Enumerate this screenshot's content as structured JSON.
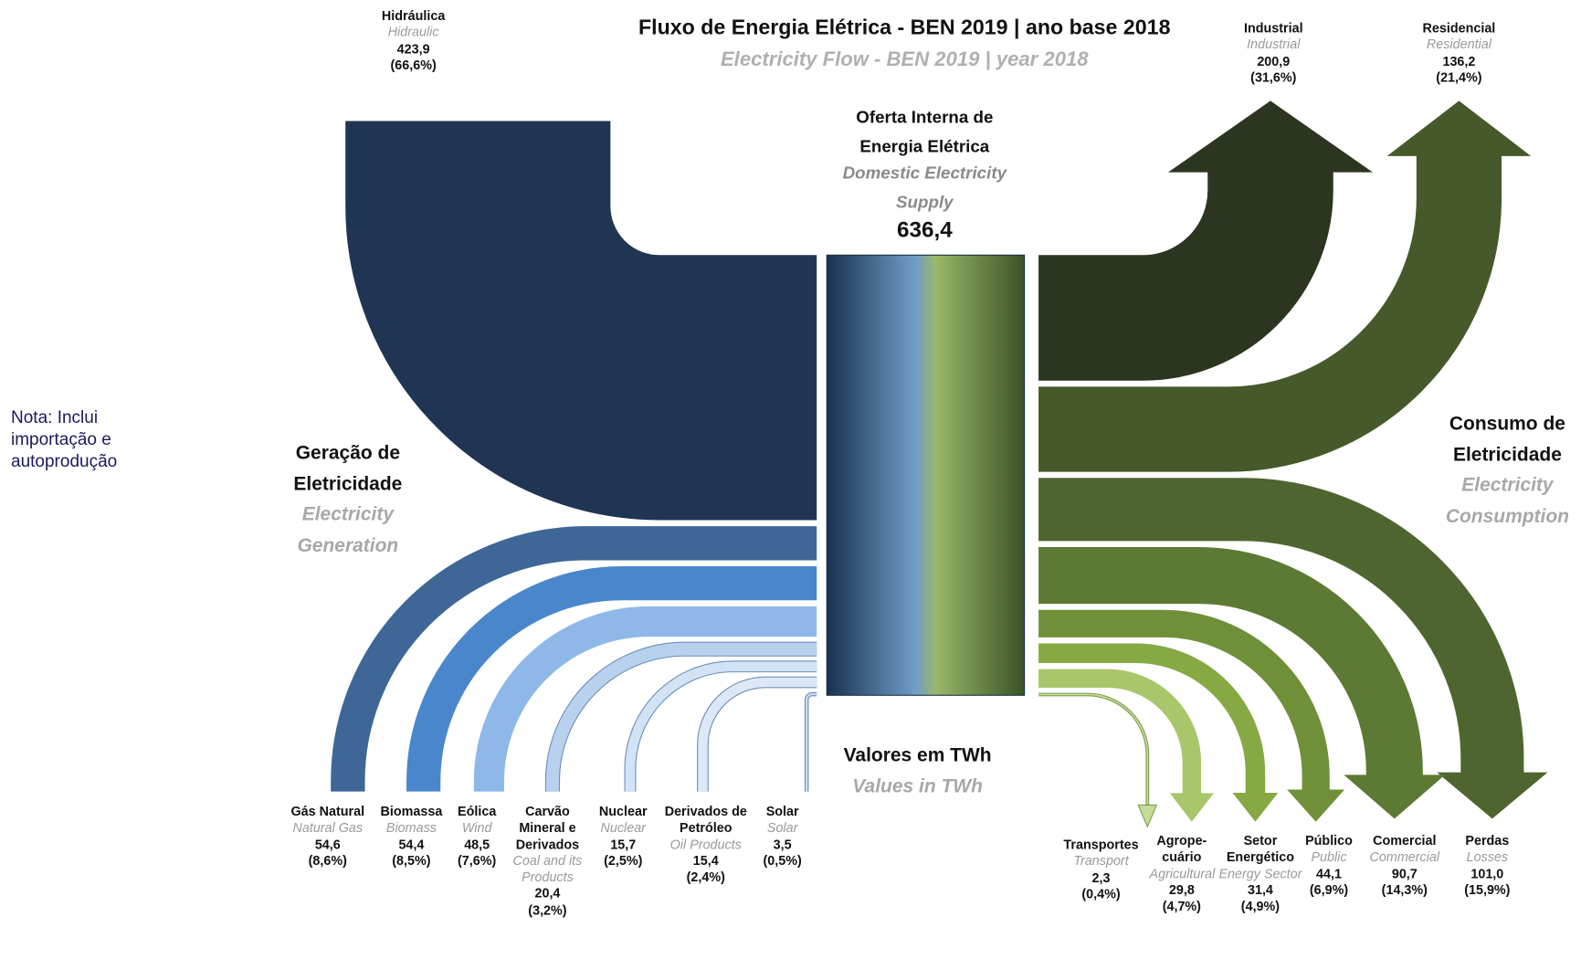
{
  "chart_data": {
    "type": "sankey",
    "title": "Fluxo de Energia Elétrica - BEN 2019 | ano base 2018",
    "subtitle": "Electricity Flow - BEN 2019 | year 2018",
    "center": {
      "name": "Oferta Interna de Energia Elétrica",
      "name_en": "Domestic Electricity Supply",
      "value": 636.4,
      "value_label": "636,4"
    },
    "unit_label": "Valores em TWh",
    "unit_label_en": "Values in TWh",
    "left_label": "Geração de Eletricidade",
    "left_label_en": "Electricity Generation",
    "right_label": "Consumo de Eletricidade",
    "right_label_en": "Electricity Consumption",
    "note": "Nota: Inclui importação e autoprodução",
    "sources": [
      {
        "name": "Hidráulica",
        "name_en": "Hidraulic",
        "value": 423.9,
        "value_label": "423,9",
        "share": 66.6,
        "share_label": "(66,6%)",
        "color": "#1f3553"
      },
      {
        "name": "Gás Natural",
        "name_en": "Natural Gas",
        "value": 54.6,
        "value_label": "54,6",
        "share": 8.6,
        "share_label": "(8,6%)",
        "color": "#3e6797"
      },
      {
        "name": "Biomassa",
        "name_en": "Biomass",
        "value": 54.4,
        "value_label": "54,4",
        "share": 8.5,
        "share_label": "(8,5%)",
        "color": "#4a86cc"
      },
      {
        "name": "Eólica",
        "name_en": "Wind",
        "value": 48.5,
        "value_label": "48,5",
        "share": 7.6,
        "share_label": "(7,6%)",
        "color": "#8eb8e8"
      },
      {
        "name": "Carvão Mineral e Derivados",
        "name_en": "Coal and its Products",
        "value": 20.4,
        "value_label": "20,4",
        "share": 3.2,
        "share_label": "(3,2%)",
        "color": "#b8d1ef"
      },
      {
        "name": "Nuclear",
        "name_en": "Nuclear",
        "value": 15.7,
        "value_label": "15,7",
        "share": 2.5,
        "share_label": "(2,5%)",
        "color": "#d3e3f6"
      },
      {
        "name": "Derivados de Petróleo",
        "name_en": "Oil Products",
        "value": 15.4,
        "value_label": "15,4",
        "share": 2.4,
        "share_label": "(2,4%)",
        "color": "#dce8f7"
      },
      {
        "name": "Solar",
        "name_en": "Solar",
        "value": 3.5,
        "value_label": "3,5",
        "share": 0.5,
        "share_label": "(0,5%)",
        "color": "#c9daf0"
      }
    ],
    "uses": [
      {
        "name": "Industrial",
        "name_en": "Industrial",
        "value": 200.9,
        "value_label": "200,9",
        "share": 31.6,
        "share_label": "(31,6%)",
        "color": "#2b3520"
      },
      {
        "name": "Residencial",
        "name_en": "Residential",
        "value": 136.2,
        "value_label": "136,2",
        "share": 21.4,
        "share_label": "(21,4%)",
        "color": "#45592a"
      },
      {
        "name": "Perdas",
        "name_en": "Losses",
        "value": 101.0,
        "value_label": "101,0",
        "share": 15.9,
        "share_label": "(15,9%)",
        "color": "#4f6530"
      },
      {
        "name": "Comercial",
        "name_en": "Commercial",
        "value": 90.7,
        "value_label": "90,7",
        "share": 14.3,
        "share_label": "(14,3%)",
        "color": "#5c7a33"
      },
      {
        "name": "Público",
        "name_en": "Public",
        "value": 44.1,
        "value_label": "44,1",
        "share": 6.9,
        "share_label": "(6,9%)",
        "color": "#6f9039"
      },
      {
        "name": "Setor Energético",
        "name_en": "Energy Sector",
        "value": 31.4,
        "value_label": "31,4",
        "share": 4.9,
        "share_label": "(4,9%)",
        "color": "#86a944"
      },
      {
        "name": "Agrope- cuário",
        "name_en": "Agricultural",
        "value": 29.8,
        "value_label": "29,8",
        "share": 4.7,
        "share_label": "(4,7%)",
        "color": "#a8c66a"
      },
      {
        "name": "Transportes",
        "name_en": "Transport",
        "value": 2.3,
        "value_label": "2,3",
        "share": 0.4,
        "share_label": "(0,4%)",
        "color": "#c4dc98"
      }
    ]
  }
}
